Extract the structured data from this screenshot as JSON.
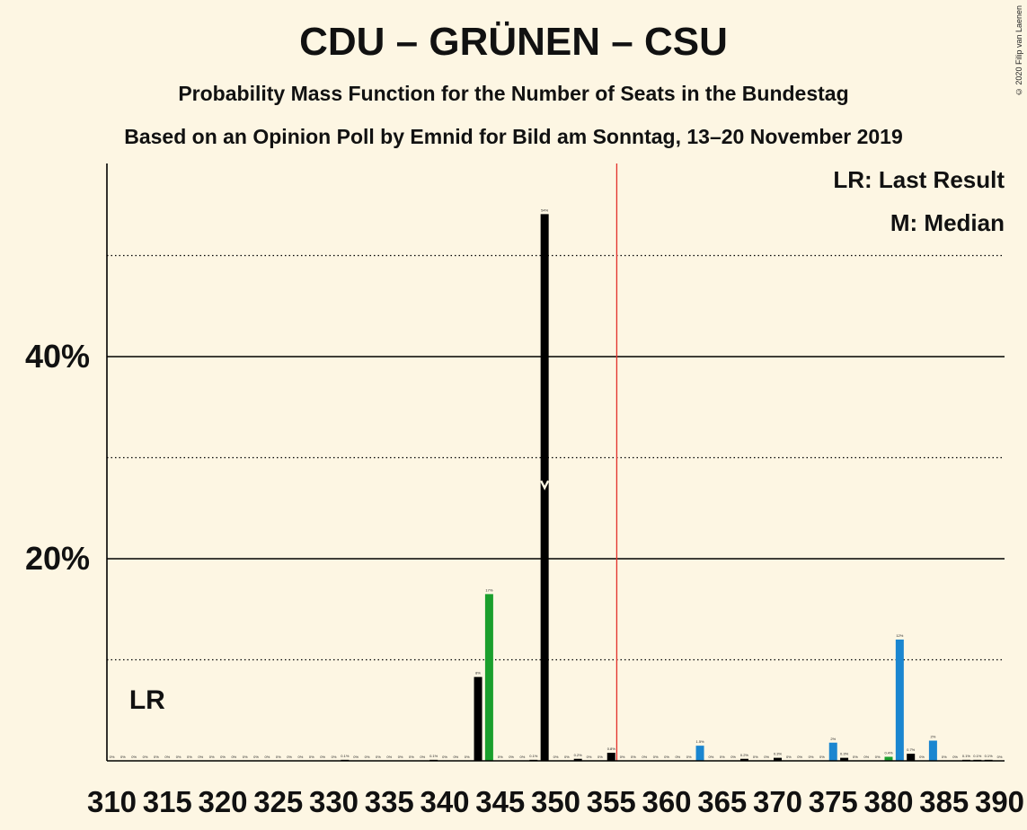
{
  "header": {
    "title": "CDU – GRÜNEN – CSU",
    "subtitle1": "Probability Mass Function for the Number of Seats in the Bundestag",
    "subtitle2": "Based on an Opinion Poll by Emnid for Bild am Sonntag, 13–20 November 2019",
    "copyright": "© 2020 Filip van Laenen"
  },
  "legend": {
    "lr": "LR: Last Result",
    "median": "M: Median",
    "lr_marker": "LR"
  },
  "colors": {
    "background": "#fdf6e3",
    "black": "#000000",
    "green": "#1a9f2c",
    "blue": "#1a86d0",
    "majority_line": "#e3302a"
  },
  "chart_data": {
    "type": "bar",
    "x_start": 310,
    "x_end": 390,
    "x_tick_labels": [
      "310",
      "315",
      "320",
      "325",
      "330",
      "335",
      "340",
      "345",
      "350",
      "355",
      "360",
      "365",
      "370",
      "375",
      "380",
      "385",
      "390"
    ],
    "y_tick_labels": [
      "20%",
      "40%"
    ],
    "ylim": [
      0,
      59
    ],
    "bars": [
      {
        "seats": 310,
        "value": 0,
        "label": "0%",
        "color": "black"
      },
      {
        "seats": 311,
        "value": 0,
        "label": "0%",
        "color": "black"
      },
      {
        "seats": 312,
        "value": 0,
        "label": "0%",
        "color": "black"
      },
      {
        "seats": 313,
        "value": 0,
        "label": "0%",
        "color": "black"
      },
      {
        "seats": 314,
        "value": 0,
        "label": "0%",
        "color": "black"
      },
      {
        "seats": 315,
        "value": 0,
        "label": "0%",
        "color": "black"
      },
      {
        "seats": 316,
        "value": 0,
        "label": "0%",
        "color": "black"
      },
      {
        "seats": 317,
        "value": 0,
        "label": "0%",
        "color": "black"
      },
      {
        "seats": 318,
        "value": 0,
        "label": "0%",
        "color": "black"
      },
      {
        "seats": 319,
        "value": 0,
        "label": "0%",
        "color": "black"
      },
      {
        "seats": 320,
        "value": 0,
        "label": "0%",
        "color": "black"
      },
      {
        "seats": 321,
        "value": 0,
        "label": "0%",
        "color": "black"
      },
      {
        "seats": 322,
        "value": 0,
        "label": "0%",
        "color": "black"
      },
      {
        "seats": 323,
        "value": 0,
        "label": "0%",
        "color": "black"
      },
      {
        "seats": 324,
        "value": 0,
        "label": "0%",
        "color": "black"
      },
      {
        "seats": 325,
        "value": 0,
        "label": "0%",
        "color": "black"
      },
      {
        "seats": 326,
        "value": 0,
        "label": "0%",
        "color": "black"
      },
      {
        "seats": 327,
        "value": 0,
        "label": "0%",
        "color": "black"
      },
      {
        "seats": 328,
        "value": 0,
        "label": "0%",
        "color": "black"
      },
      {
        "seats": 329,
        "value": 0,
        "label": "0%",
        "color": "black"
      },
      {
        "seats": 330,
        "value": 0,
        "label": "0%",
        "color": "black"
      },
      {
        "seats": 331,
        "value": 0.1,
        "label": "0.1%",
        "color": "black"
      },
      {
        "seats": 332,
        "value": 0,
        "label": "0%",
        "color": "black"
      },
      {
        "seats": 333,
        "value": 0,
        "label": "0%",
        "color": "black"
      },
      {
        "seats": 334,
        "value": 0,
        "label": "0%",
        "color": "black"
      },
      {
        "seats": 335,
        "value": 0,
        "label": "0%",
        "color": "black"
      },
      {
        "seats": 336,
        "value": 0,
        "label": "0%",
        "color": "black"
      },
      {
        "seats": 337,
        "value": 0,
        "label": "0%",
        "color": "black"
      },
      {
        "seats": 338,
        "value": 0,
        "label": "0%",
        "color": "black"
      },
      {
        "seats": 339,
        "value": 0.1,
        "label": "0.1%",
        "color": "black"
      },
      {
        "seats": 340,
        "value": 0,
        "label": "0%",
        "color": "black"
      },
      {
        "seats": 341,
        "value": 0,
        "label": "0%",
        "color": "black"
      },
      {
        "seats": 342,
        "value": 0,
        "label": "0%",
        "color": "black"
      },
      {
        "seats": 343,
        "value": 8.3,
        "label": "8%",
        "color": "black"
      },
      {
        "seats": 344,
        "value": 16.5,
        "label": "17%",
        "color": "green"
      },
      {
        "seats": 345,
        "value": 0,
        "label": "0%",
        "color": "black"
      },
      {
        "seats": 346,
        "value": 0,
        "label": "0%",
        "color": "black"
      },
      {
        "seats": 347,
        "value": 0,
        "label": "0%",
        "color": "black"
      },
      {
        "seats": 348,
        "value": 0.1,
        "label": "0.1%",
        "color": "black"
      },
      {
        "seats": 349,
        "value": 54.1,
        "label": "54%",
        "color": "black"
      },
      {
        "seats": 350,
        "value": 0,
        "label": "0%",
        "color": "black"
      },
      {
        "seats": 351,
        "value": 0,
        "label": "0%",
        "color": "black"
      },
      {
        "seats": 352,
        "value": 0.2,
        "label": "0.2%",
        "color": "black"
      },
      {
        "seats": 353,
        "value": 0,
        "label": "0%",
        "color": "black"
      },
      {
        "seats": 354,
        "value": 0,
        "label": "0%",
        "color": "black"
      },
      {
        "seats": 355,
        "value": 0.8,
        "label": "0.8%",
        "color": "black"
      },
      {
        "seats": 356,
        "value": 0,
        "label": "0%",
        "color": "black"
      },
      {
        "seats": 357,
        "value": 0,
        "label": "0%",
        "color": "black"
      },
      {
        "seats": 358,
        "value": 0,
        "label": "0%",
        "color": "black"
      },
      {
        "seats": 359,
        "value": 0,
        "label": "0%",
        "color": "black"
      },
      {
        "seats": 360,
        "value": 0,
        "label": "0%",
        "color": "black"
      },
      {
        "seats": 361,
        "value": 0,
        "label": "0%",
        "color": "black"
      },
      {
        "seats": 362,
        "value": 0,
        "label": "0%",
        "color": "black"
      },
      {
        "seats": 363,
        "value": 1.5,
        "label": "1.5%",
        "color": "blue"
      },
      {
        "seats": 364,
        "value": 0,
        "label": "0%",
        "color": "black"
      },
      {
        "seats": 365,
        "value": 0,
        "label": "0%",
        "color": "black"
      },
      {
        "seats": 366,
        "value": 0,
        "label": "0%",
        "color": "black"
      },
      {
        "seats": 367,
        "value": 0.2,
        "label": "0.2%",
        "color": "black"
      },
      {
        "seats": 368,
        "value": 0,
        "label": "0%",
        "color": "black"
      },
      {
        "seats": 369,
        "value": 0,
        "label": "0%",
        "color": "black"
      },
      {
        "seats": 370,
        "value": 0.3,
        "label": "0.3%",
        "color": "black"
      },
      {
        "seats": 371,
        "value": 0,
        "label": "0%",
        "color": "black"
      },
      {
        "seats": 372,
        "value": 0,
        "label": "0%",
        "color": "black"
      },
      {
        "seats": 373,
        "value": 0,
        "label": "0%",
        "color": "black"
      },
      {
        "seats": 374,
        "value": 0,
        "label": "0%",
        "color": "black"
      },
      {
        "seats": 375,
        "value": 1.8,
        "label": "2%",
        "color": "blue"
      },
      {
        "seats": 376,
        "value": 0.3,
        "label": "0.3%",
        "color": "black"
      },
      {
        "seats": 377,
        "value": 0,
        "label": "0%",
        "color": "black"
      },
      {
        "seats": 378,
        "value": 0,
        "label": "0%",
        "color": "black"
      },
      {
        "seats": 379,
        "value": 0,
        "label": "0%",
        "color": "black"
      },
      {
        "seats": 380,
        "value": 0.4,
        "label": "0.4%",
        "color": "green"
      },
      {
        "seats": 381,
        "value": 12,
        "label": "12%",
        "color": "blue"
      },
      {
        "seats": 382,
        "value": 0.7,
        "label": "0.7%",
        "color": "black"
      },
      {
        "seats": 383,
        "value": 0,
        "label": "0%",
        "color": "black"
      },
      {
        "seats": 384,
        "value": 2,
        "label": "2%",
        "color": "blue"
      },
      {
        "seats": 385,
        "value": 0,
        "label": "0%",
        "color": "black"
      },
      {
        "seats": 386,
        "value": 0,
        "label": "0%",
        "color": "black"
      },
      {
        "seats": 387,
        "value": 0.1,
        "label": "0.1%",
        "color": "black"
      },
      {
        "seats": 388,
        "value": 0.1,
        "label": "0.1%",
        "color": "black"
      },
      {
        "seats": 389,
        "value": 0.1,
        "label": "0.1%",
        "color": "black"
      },
      {
        "seats": 390,
        "value": 0,
        "label": "0%",
        "color": "black"
      }
    ],
    "median": 349,
    "last_result": 311,
    "majority": 355.5,
    "gridlines_major": [
      20,
      40
    ],
    "gridlines_minor": [
      10,
      30,
      50
    ]
  }
}
